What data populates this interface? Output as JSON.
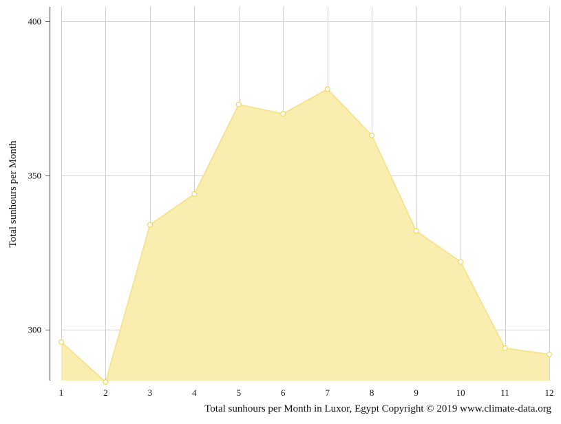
{
  "chart_data": {
    "type": "area",
    "x": [
      1,
      2,
      3,
      4,
      5,
      6,
      7,
      8,
      9,
      10,
      11,
      12
    ],
    "values": [
      296,
      283,
      334,
      344,
      373,
      370,
      378,
      363,
      332,
      322,
      294,
      292
    ],
    "ylabel": "Total sunhours per Month",
    "xlabel": "",
    "ylim": [
      283,
      402
    ],
    "y_ticks": [
      300,
      350,
      400
    ],
    "grid": true,
    "colors": {
      "fill": "#f9eeb0",
      "line": "#f7e38e",
      "marker_fill": "#ffffff",
      "marker_stroke": "#f2d65a",
      "grid": "#d2d2d2",
      "axis": "#555555"
    }
  },
  "footer": {
    "text": "Total sunhours per Month in Luxor, Egypt Copyright © 2019 www.climate-data.org"
  }
}
